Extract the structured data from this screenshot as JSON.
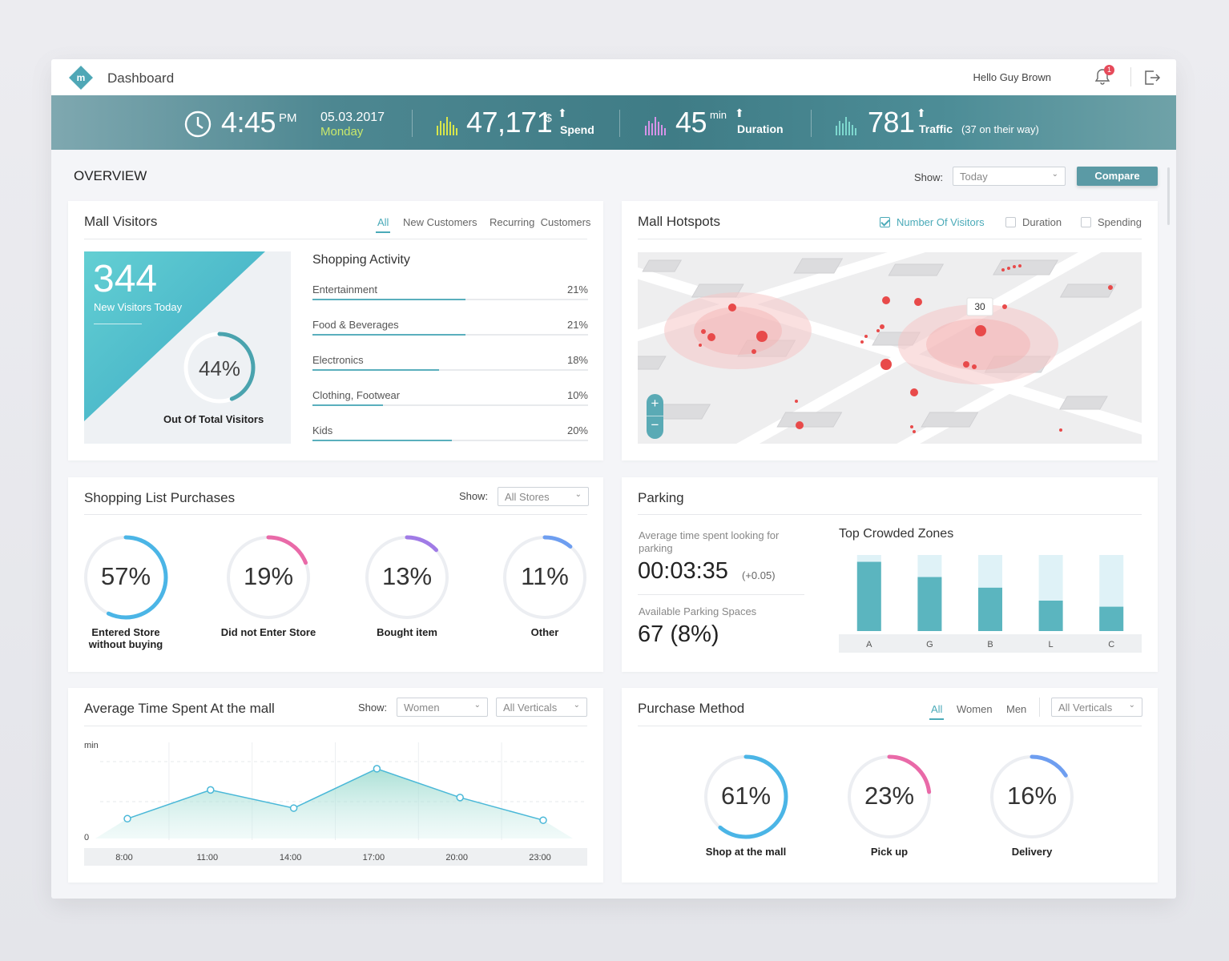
{
  "header": {
    "title": "Dashboard",
    "greeting": "Hello Guy Brown",
    "notification_count": "1"
  },
  "banner": {
    "time": "4:45",
    "ampm": "PM",
    "date": "05.03.2017",
    "weekday": "Monday",
    "spend_value": "47,171",
    "spend_unit": "$",
    "spend_label": "Spend",
    "duration_value": "45",
    "duration_unit": "min",
    "duration_label": "Duration",
    "traffic_value": "781",
    "traffic_label": "Traffic",
    "traffic_note": "(37 on their way)"
  },
  "overview": {
    "title": "OVERVIEW",
    "show_label": "Show:",
    "period": "Today",
    "compare_label": "Compare"
  },
  "mall_visitors": {
    "title": "Mall Visitors",
    "tabs": [
      "All",
      "New Customers",
      "Recurring  Customers"
    ],
    "new_visitors": "344",
    "new_visitors_label": "New Visitors Today",
    "share_pct": "44%",
    "share_value": 0.44,
    "share_label": "Out Of Total Visitors",
    "activity_title": "Shopping Activity",
    "activity": [
      {
        "label": "Entertainment",
        "pct": "21%",
        "fill": 0.555
      },
      {
        "label": "Food & Beverages",
        "pct": "21%",
        "fill": 0.555
      },
      {
        "label": "Electronics",
        "pct": "18%",
        "fill": 0.458
      },
      {
        "label": "Clothing, Footwear",
        "pct": "10%",
        "fill": 0.255
      },
      {
        "label": "Kids",
        "pct": "20%",
        "fill": 0.506
      }
    ]
  },
  "hotspots": {
    "title": "Mall Hotspots",
    "filters": [
      {
        "label": "Number Of Visitors",
        "checked": true
      },
      {
        "label": "Duration",
        "checked": false
      },
      {
        "label": "Spending",
        "checked": false
      }
    ],
    "tooltip_value": "30",
    "zoom_in": "+",
    "zoom_out": "−"
  },
  "shopping_list": {
    "title": "Shopping List Purchases",
    "show_label": "Show:",
    "store_filter": "All Stores",
    "items": [
      {
        "pct": "57%",
        "value": 0.57,
        "label": "Entered Store\nwithout buying",
        "color": "#4bb5e6"
      },
      {
        "pct": "19%",
        "value": 0.19,
        "label": "Did not Enter Store",
        "color": "#e96aa8"
      },
      {
        "pct": "13%",
        "value": 0.13,
        "label": "Bought item",
        "color": "#a07be6"
      },
      {
        "pct": "11%",
        "value": 0.11,
        "label": "Other",
        "color": "#6e9ef0"
      }
    ]
  },
  "parking": {
    "title": "Parking",
    "avg_time_label": "Average time spent looking for parking",
    "avg_time_value": "00:03:35",
    "avg_time_delta": "(+0.05)",
    "spaces_label": "Available Parking Spaces",
    "spaces_value": "67 (8%)",
    "zones_title": "Top Crowded Zones",
    "chart_data": {
      "type": "bar",
      "categories": [
        "A",
        "G",
        "B",
        "L",
        "C"
      ],
      "values": [
        0.91,
        0.71,
        0.57,
        0.4,
        0.32
      ],
      "ylim": [
        0,
        1
      ],
      "title": "Top Crowded Zones",
      "grid": false,
      "color": "#5bb5bf",
      "background_color": "#dff2f7"
    }
  },
  "avg_time": {
    "title": "Average Time Spent At the mall",
    "show_label": "Show:",
    "gender_filter": "Women",
    "vertical_filter": "All Verticals",
    "ylabel": "min",
    "ymin_label": "0",
    "chart_data": {
      "type": "area",
      "x": [
        "8:00",
        "11:00",
        "14:00",
        "17:00",
        "20:00",
        "23:00"
      ],
      "series": [
        {
          "values": [
            24,
            62,
            38,
            90,
            52,
            22
          ]
        }
      ],
      "ylim": [
        0,
        110
      ],
      "ylabel": "min",
      "grid": true,
      "color": "#4ab8d8"
    }
  },
  "purchase_method": {
    "title": "Purchase Method",
    "tabs": [
      "All",
      "Women",
      "Men"
    ],
    "vertical_filter": "All Verticals",
    "items": [
      {
        "pct": "61%",
        "value": 0.61,
        "label": "Shop at the mall",
        "color": "#4bb5e6"
      },
      {
        "pct": "23%",
        "value": 0.23,
        "label": "Pick up",
        "color": "#e96aa8"
      },
      {
        "pct": "16%",
        "value": 0.16,
        "label": "Delivery",
        "color": "#6e9ef0"
      }
    ]
  }
}
